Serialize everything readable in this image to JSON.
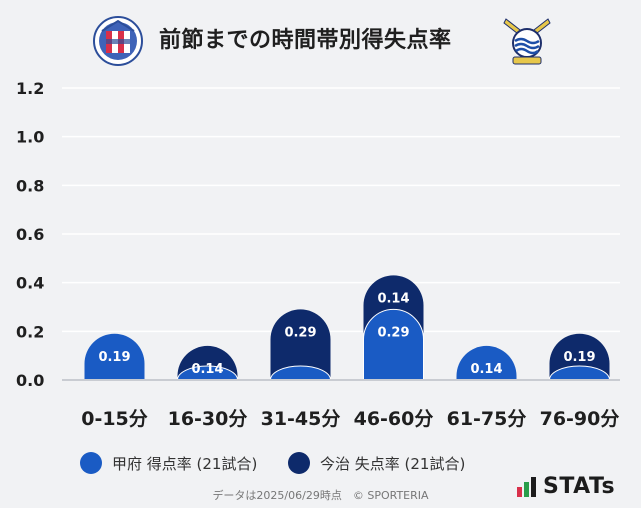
{
  "title": "前節までの時間帯別得失点率",
  "teams": {
    "home": {
      "name": "甲府",
      "emblem_icon": "ventforet-kofu-emblem-icon",
      "emblem_text": "VENTFORET KOFU"
    },
    "away": {
      "name": "今治",
      "emblem_icon": "fc-imabari-emblem-icon"
    }
  },
  "colors": {
    "background": "#f1f2f4",
    "home_bar": "#1a5bc4",
    "away_bar": "#0e2a6b",
    "grid": "#ffffff",
    "axis_text": "#1f1f1f"
  },
  "chart_data": {
    "type": "bar",
    "categories": [
      "0-15分",
      "16-30分",
      "31-45分",
      "46-60分",
      "61-75分",
      "76-90分"
    ],
    "series": [
      {
        "name": "甲府 得点率 (21試合)",
        "values": [
          0.19,
          0.0,
          0.0,
          0.29,
          0.14,
          0.0
        ]
      },
      {
        "name": "今治 失点率 (21試合)",
        "values": [
          0.0,
          0.14,
          0.29,
          0.14,
          0.0,
          0.19
        ]
      }
    ],
    "data_labels": [
      [
        "0.19",
        "",
        "",
        "0.29",
        "0.14",
        ""
      ],
      [
        "",
        "0.14",
        "0.29",
        "0.14",
        "",
        "0.19"
      ]
    ],
    "y_ticks": [
      "0.0",
      "0.2",
      "0.4",
      "0.6",
      "0.8",
      "1.0",
      "1.2"
    ],
    "ylim": [
      0,
      1.2
    ],
    "stacked": true,
    "grid": true,
    "legend_position": "bottom"
  },
  "footer": {
    "note": "データは2025/06/29時点　© SPORTERIA",
    "brand": "STATs",
    "brand_icon": "stats-logo-icon"
  }
}
